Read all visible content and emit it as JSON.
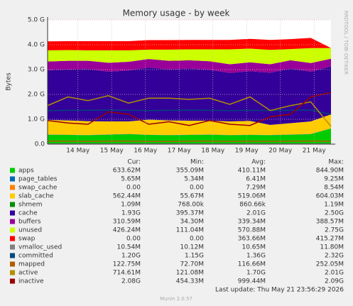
{
  "chart_data": {
    "type": "area",
    "title": "Memory usage - by week",
    "ylabel": "Bytes",
    "side_text": "RRDTOOL / TOBI OETIKER",
    "last_update": "Last update: Thu May 21 23:56:29 2026",
    "footer": "Munin 2.0.57",
    "stat_headers": [
      "Cur:",
      "Min:",
      "Avg:",
      "Max:"
    ],
    "x": [
      13.6,
      14.2,
      14.8,
      15.4,
      16.0,
      16.6,
      17.2,
      17.8,
      18.4,
      19.0,
      19.6,
      20.2,
      20.8,
      21.4,
      22.0
    ],
    "xlim": [
      13.6,
      22.0
    ],
    "xticks": [
      {
        "value": 14.5,
        "label": "14 May"
      },
      {
        "value": 15.5,
        "label": "15 May"
      },
      {
        "value": 16.5,
        "label": "16 May"
      },
      {
        "value": 17.5,
        "label": "17 May"
      },
      {
        "value": 18.5,
        "label": "18 May"
      },
      {
        "value": 19.5,
        "label": "19 May"
      },
      {
        "value": 20.5,
        "label": "20 May"
      },
      {
        "value": 21.5,
        "label": "21 May"
      }
    ],
    "ylim": [
      0,
      5
    ],
    "yticks": [
      {
        "value": 0,
        "label": "0.0"
      },
      {
        "value": 1,
        "label": "1.0 G"
      },
      {
        "value": 2,
        "label": "2.0 G"
      },
      {
        "value": 3,
        "label": "3.0 G"
      },
      {
        "value": 4,
        "label": "4.0 G"
      },
      {
        "value": 5,
        "label": "5.0 G"
      }
    ],
    "grid": true,
    "series": [
      {
        "name": "apps",
        "color": "#00cc00",
        "stacked": true,
        "stats": [
          "633.62M",
          "355.09M",
          "410.11M",
          "844.90M"
        ],
        "values": [
          0.38,
          0.37,
          0.36,
          0.38,
          0.4,
          0.37,
          0.36,
          0.37,
          0.38,
          0.36,
          0.37,
          0.36,
          0.38,
          0.4,
          0.63
        ]
      },
      {
        "name": "page_tables",
        "color": "#0066b3",
        "stacked": true,
        "stats": [
          "5.65M",
          "5.34M",
          "6.41M",
          "9.25M"
        ],
        "values": [
          0.006,
          0.006,
          0.006,
          0.006,
          0.006,
          0.006,
          0.006,
          0.006,
          0.006,
          0.006,
          0.006,
          0.006,
          0.006,
          0.006,
          0.006
        ]
      },
      {
        "name": "swap_cache",
        "color": "#ff8000",
        "stacked": true,
        "stats": [
          "0.00",
          "0.00",
          "7.29M",
          "8.54M"
        ],
        "values": [
          0.007,
          0.007,
          0.007,
          0.007,
          0.007,
          0.007,
          0.007,
          0.007,
          0.007,
          0.007,
          0.007,
          0.007,
          0.007,
          0.007,
          0
        ]
      },
      {
        "name": "slab_cache",
        "color": "#ffcc00",
        "stacked": true,
        "stats": [
          "562.44M",
          "55.67M",
          "519.06M",
          "604.03M"
        ],
        "values": [
          0.58,
          0.57,
          0.55,
          0.52,
          0.5,
          0.6,
          0.58,
          0.56,
          0.55,
          0.54,
          0.55,
          0.4,
          0.45,
          0.5,
          0.56
        ]
      },
      {
        "name": "shmem",
        "color": "#008f00",
        "stacked": true,
        "stats": [
          "1.09M",
          "768.00k",
          "860.66k",
          "1.19M"
        ],
        "values": [
          0.001,
          0.001,
          0.001,
          0.001,
          0.001,
          0.001,
          0.001,
          0.001,
          0.001,
          0.001,
          0.001,
          0.001,
          0.001,
          0.001,
          0.001
        ]
      },
      {
        "name": "cache",
        "color": "#330099",
        "stacked": true,
        "stats": [
          "1.93G",
          "395.37M",
          "2.01G",
          "2.50G"
        ],
        "values": [
          2.0,
          2.05,
          2.1,
          2.0,
          2.05,
          2.1,
          2.05,
          2.1,
          2.05,
          1.95,
          2.0,
          2.1,
          2.2,
          2.0,
          1.93
        ]
      },
      {
        "name": "buffers",
        "color": "#990099",
        "stacked": true,
        "stats": [
          "310.59M",
          "34.30M",
          "339.34M",
          "388.57M"
        ],
        "values": [
          0.35,
          0.35,
          0.33,
          0.36,
          0.35,
          0.34,
          0.35,
          0.33,
          0.34,
          0.35,
          0.36,
          0.34,
          0.33,
          0.35,
          0.31
        ]
      },
      {
        "name": "unused",
        "color": "#ccff00",
        "stacked": true,
        "stats": [
          "426.24M",
          "111.04M",
          "570.88M",
          "2.75G"
        ],
        "values": [
          0.45,
          0.43,
          0.42,
          0.5,
          0.46,
          0.38,
          0.45,
          0.44,
          0.48,
          0.6,
          0.55,
          0.58,
          0.45,
          0.6,
          0.43
        ]
      },
      {
        "name": "swap",
        "color": "#ff0000",
        "stacked": true,
        "stats": [
          "0.00",
          "0.00",
          "363.66M",
          "415.27M"
        ],
        "values": [
          0.36,
          0.36,
          0.37,
          0.37,
          0.37,
          0.38,
          0.38,
          0.38,
          0.38,
          0.38,
          0.39,
          0.4,
          0.4,
          0.41,
          0
        ]
      },
      {
        "name": "vmalloc_used",
        "color": "#808080",
        "stacked": false,
        "stats": [
          "10.54M",
          "10.12M",
          "10.65M",
          "11.80M"
        ],
        "values": [
          0.0105,
          0.0105,
          0.0105,
          0.0105,
          0.0105,
          0.0105,
          0.0105,
          0.0105,
          0.0105,
          0.0105,
          0.0105,
          0.0105,
          0.0105,
          0.0105,
          0.0105
        ]
      },
      {
        "name": "committed",
        "color": "#00487d",
        "stacked": false,
        "stats": [
          "1.20G",
          "1.15G",
          "1.36G",
          "2.32G"
        ],
        "values": [
          1.35,
          1.36,
          1.36,
          1.37,
          1.36,
          1.35,
          1.36,
          1.37,
          1.36,
          1.35,
          1.36,
          1.35,
          1.36,
          1.37,
          1.2
        ]
      },
      {
        "name": "mapped",
        "color": "#b35a00",
        "stacked": false,
        "stats": [
          "122.75M",
          "72.70M",
          "116.66M",
          "252.05M"
        ],
        "values": [
          0.12,
          0.12,
          0.11,
          0.12,
          0.12,
          0.11,
          0.11,
          0.12,
          0.12,
          0.11,
          0.12,
          0.11,
          0.12,
          0.12,
          0.12
        ]
      },
      {
        "name": "active",
        "color": "#b38f00",
        "stacked": false,
        "stats": [
          "714.61M",
          "121.08M",
          "1.70G",
          "2.01G"
        ],
        "values": [
          1.55,
          1.9,
          1.75,
          1.95,
          1.65,
          1.85,
          1.85,
          1.8,
          1.85,
          1.6,
          1.9,
          1.35,
          1.55,
          1.7,
          0.71
        ]
      },
      {
        "name": "inactive",
        "color": "#990000",
        "stacked": false,
        "stats": [
          "2.08G",
          "454.33M",
          "999.44M",
          "2.09G"
        ],
        "values": [
          0.95,
          0.85,
          0.8,
          1.3,
          1.2,
          0.8,
          0.9,
          0.75,
          0.95,
          0.8,
          0.75,
          1.1,
          1.2,
          1.9,
          2.08
        ]
      }
    ]
  }
}
